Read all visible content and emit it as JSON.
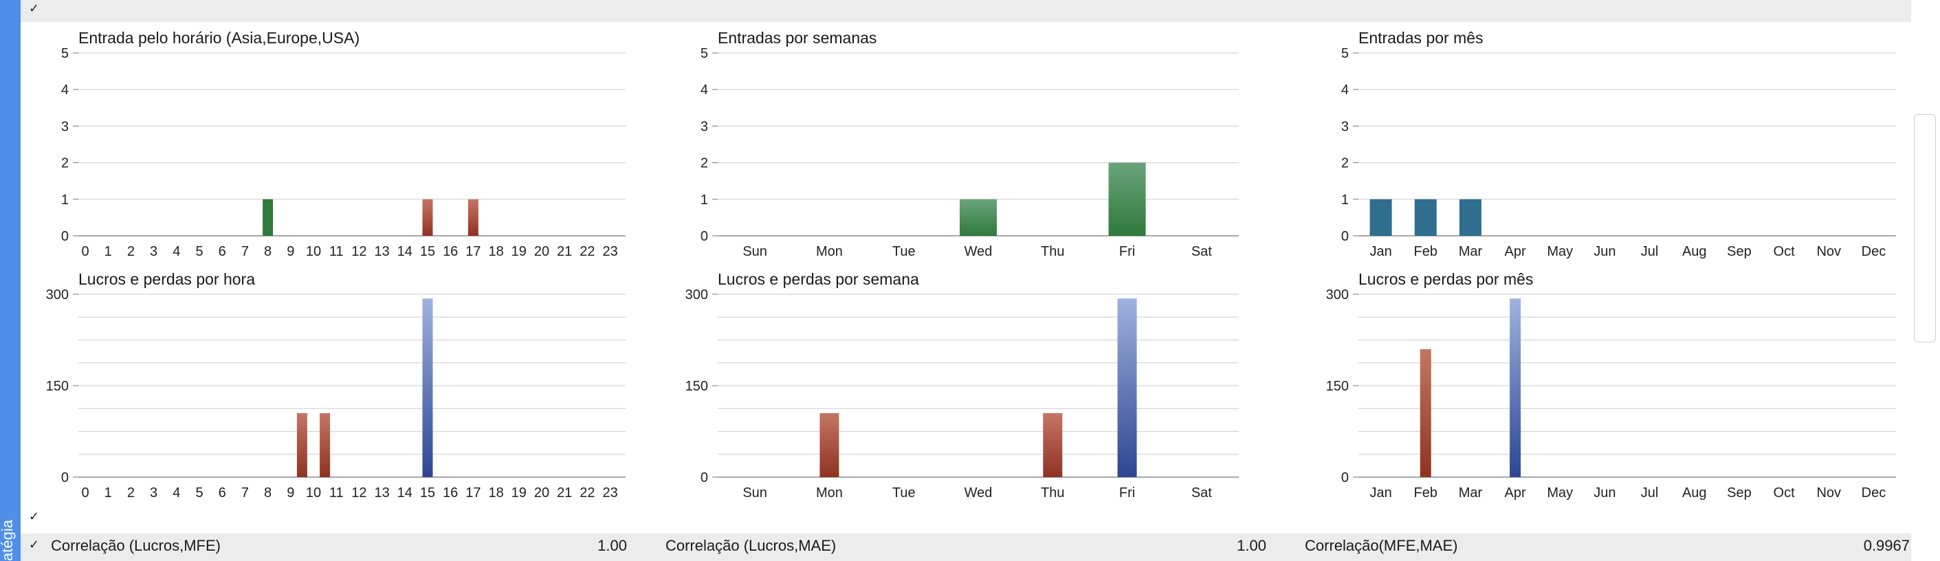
{
  "sidebar": {
    "label": "atégia"
  },
  "check_glyph": "✓",
  "colors": {
    "green": "#2f7a3c",
    "green_light": "#6aa47c",
    "red": "#8f3322",
    "red_light": "#c57565",
    "blue": "#2d4690",
    "blue_light": "#9fb1df",
    "teal": "#2f6e8f",
    "grid": "#d4d4d4",
    "axis": "#8c8c8c"
  },
  "correlations": [
    {
      "label": "Correlação (Lucros,MFE)",
      "value": "1.00"
    },
    {
      "label": "Correlação (Lucros,MAE)",
      "value": "1.00"
    },
    {
      "label": "Correlação(MFE,MAE)",
      "value": "0.9967"
    }
  ],
  "chart_data": [
    {
      "type": "bar",
      "title": "Entrada pelo horário (Asia,Europe,USA)",
      "categories": [
        "0",
        "1",
        "2",
        "3",
        "4",
        "5",
        "6",
        "7",
        "8",
        "9",
        "10",
        "11",
        "12",
        "13",
        "14",
        "15",
        "16",
        "17",
        "18",
        "19",
        "20",
        "21",
        "22",
        "23"
      ],
      "values": [
        0,
        0,
        0,
        0,
        0,
        0,
        0,
        0,
        1,
        0,
        0,
        0,
        0,
        0,
        0,
        1,
        0,
        1,
        0,
        0,
        0,
        0,
        0,
        0
      ],
      "bar_colors": {
        "8": "green",
        "15": "red",
        "17": "red"
      },
      "ylim": [
        0,
        5
      ],
      "yticks": [
        0,
        1,
        2,
        3,
        4,
        5
      ],
      "grid": true
    },
    {
      "type": "bar",
      "title": "Entradas por semanas",
      "categories": [
        "Sun",
        "Mon",
        "Tue",
        "Wed",
        "Thu",
        "Fri",
        "Sat"
      ],
      "values": [
        0,
        0,
        0,
        1,
        0,
        2,
        0
      ],
      "bar_colors": {
        "3": "green",
        "5": "green"
      },
      "ylim": [
        0,
        5
      ],
      "yticks": [
        0,
        1,
        2,
        3,
        4,
        5
      ],
      "grid": true
    },
    {
      "type": "bar",
      "title": "Entradas por mês",
      "categories": [
        "Jan",
        "Feb",
        "Mar",
        "Apr",
        "May",
        "Jun",
        "Jul",
        "Aug",
        "Sep",
        "Oct",
        "Nov",
        "Dec"
      ],
      "values": [
        1,
        1,
        1,
        0,
        0,
        0,
        0,
        0,
        0,
        0,
        0,
        0
      ],
      "bar_colors": {
        "0": "teal",
        "1": "teal",
        "2": "teal"
      },
      "ylim": [
        0,
        5
      ],
      "yticks": [
        0,
        1,
        2,
        3,
        4,
        5
      ],
      "grid": true
    },
    {
      "type": "bar",
      "title": "Lucros e perdas por hora",
      "categories": [
        "0",
        "1",
        "2",
        "3",
        "4",
        "5",
        "6",
        "7",
        "8",
        "9",
        "10",
        "11",
        "12",
        "13",
        "14",
        "15",
        "16",
        "17",
        "18",
        "19",
        "20",
        "21",
        "22",
        "23"
      ],
      "values": [
        0,
        0,
        0,
        0,
        0,
        0,
        0,
        0,
        0,
        105,
        0,
        105,
        0,
        0,
        0,
        293,
        0,
        0,
        0,
        0,
        0,
        0,
        0,
        0
      ],
      "bar_positions": {
        "9": 9.5,
        "11": 10.5
      },
      "bar_colors": {
        "9": "red",
        "11": "red",
        "15": "blue"
      },
      "ylim": [
        0,
        300
      ],
      "yticks": [
        0,
        150,
        300
      ],
      "grid": true
    },
    {
      "type": "bar",
      "title": "Lucros e perdas por semana",
      "categories": [
        "Sun",
        "Mon",
        "Tue",
        "Wed",
        "Thu",
        "Fri",
        "Sat"
      ],
      "values": [
        0,
        105,
        0,
        0,
        105,
        293,
        0
      ],
      "bar_colors": {
        "1": "red",
        "4": "red",
        "5": "blue"
      },
      "ylim": [
        0,
        300
      ],
      "yticks": [
        0,
        150,
        300
      ],
      "grid": true
    },
    {
      "type": "bar",
      "title": "Lucros e perdas por mês",
      "categories": [
        "Jan",
        "Feb",
        "Mar",
        "Apr",
        "May",
        "Jun",
        "Jul",
        "Aug",
        "Sep",
        "Oct",
        "Nov",
        "Dec"
      ],
      "values": [
        0,
        210,
        0,
        293,
        0,
        0,
        0,
        0,
        0,
        0,
        0,
        0
      ],
      "bar_colors": {
        "1": "red",
        "3": "blue"
      },
      "ylim": [
        0,
        300
      ],
      "yticks": [
        0,
        150,
        300
      ],
      "grid": true
    }
  ]
}
